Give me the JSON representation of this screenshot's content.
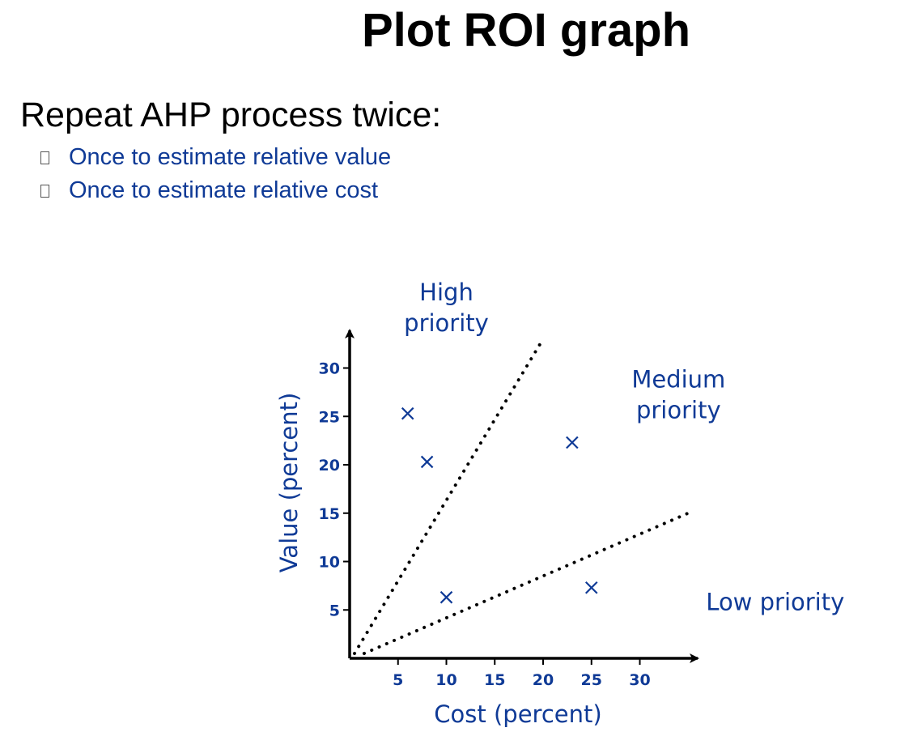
{
  "slide": {
    "title": "Plot ROI graph",
    "main_point": "Repeat AHP process twice:",
    "bullets": [
      "Once to estimate relative value",
      "Once to estimate relative cost"
    ]
  },
  "colors": {
    "title_text": "#000000",
    "bullet_text": "#0f3a96",
    "chart_text": "#0f3a96",
    "axis": "#000000"
  },
  "chart_data": {
    "type": "scatter",
    "title": "",
    "xlabel": "Cost (percent)",
    "ylabel": "Value (percent)",
    "x_ticks": [
      5,
      10,
      15,
      20,
      25,
      30
    ],
    "y_ticks": [
      5,
      10,
      15,
      20,
      25,
      30
    ],
    "points": [
      {
        "x": 6,
        "y": 25.3
      },
      {
        "x": 8,
        "y": 20.3
      },
      {
        "x": 10,
        "y": 6.3
      },
      {
        "x": 23,
        "y": 22.3
      },
      {
        "x": 25,
        "y": 7.3
      }
    ],
    "point_marker": "x",
    "boundary_lines": [
      {
        "x1": 0,
        "y1": 0,
        "x2": 20,
        "y2": 33
      },
      {
        "x1": 1,
        "y1": 0,
        "x2": 35,
        "y2": 15
      }
    ],
    "region_labels": [
      {
        "lines": [
          "High",
          "priority"
        ],
        "x": 10,
        "y": 37
      },
      {
        "lines": [
          "Medium",
          "priority"
        ],
        "x": 34,
        "y": 28
      },
      {
        "lines": [
          "Low priority"
        ],
        "x": 44,
        "y": 5
      }
    ],
    "grid": false
  }
}
